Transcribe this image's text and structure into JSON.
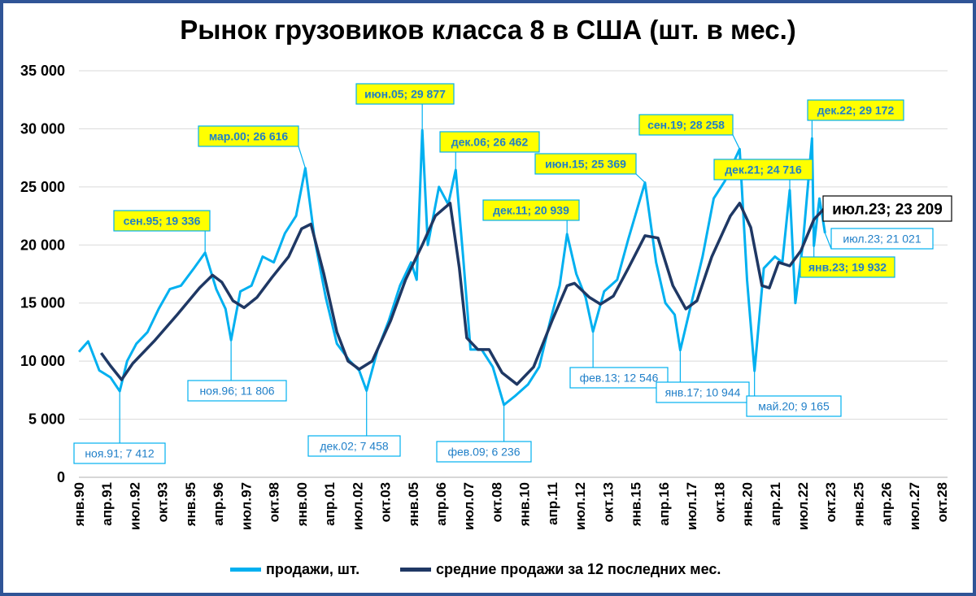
{
  "chart_data": {
    "type": "line",
    "title": "Рынок грузовиков класса 8 в США (шт. в мес.)",
    "ylim": [
      0,
      35000
    ],
    "y_ticks": [
      "0",
      "5 000",
      "10 000",
      "15 000",
      "20 000",
      "25 000",
      "30 000",
      "35 000"
    ],
    "x_ticks": [
      "янв.90",
      "апр.91",
      "июл.92",
      "окт.93",
      "янв.95",
      "апр.96",
      "июл.97",
      "окт.98",
      "янв.00",
      "апр.01",
      "июл.02",
      "окт.03",
      "янв.05",
      "апр.06",
      "июл.07",
      "окт.08",
      "янв.10",
      "апр.11",
      "июл.12",
      "окт.13",
      "янв.15",
      "апр.16",
      "июл.17",
      "окт.18",
      "янв.20",
      "апр.21",
      "июл.22",
      "окт.23",
      "янв.25",
      "апр.26",
      "июл.27",
      "окт.28"
    ],
    "x_range": [
      "янв.90",
      "дек.28"
    ],
    "colors": {
      "sales": "#00b0f0",
      "avg": "#1f3864",
      "frame": "#2f5496",
      "highlight": "#ffff00"
    },
    "series": [
      {
        "name": "продажи, шт.",
        "key": "sales",
        "points": [
          [
            "1990-01",
            10800
          ],
          [
            "1990-06",
            11700
          ],
          [
            "1990-12",
            9200
          ],
          [
            "1991-06",
            8600
          ],
          [
            "1991-11",
            7412
          ],
          [
            "1992-03",
            10000
          ],
          [
            "1992-08",
            11500
          ],
          [
            "1993-02",
            12500
          ],
          [
            "1993-08",
            14500
          ],
          [
            "1994-02",
            16200
          ],
          [
            "1994-08",
            16500
          ],
          [
            "1995-03",
            18000
          ],
          [
            "1995-09",
            19336
          ],
          [
            "1996-03",
            16200
          ],
          [
            "1996-08",
            14500
          ],
          [
            "1996-11",
            11806
          ],
          [
            "1997-04",
            16000
          ],
          [
            "1997-10",
            16500
          ],
          [
            "1998-04",
            19000
          ],
          [
            "1998-10",
            18500
          ],
          [
            "1999-04",
            21000
          ],
          [
            "1999-10",
            22500
          ],
          [
            "2000-03",
            26616
          ],
          [
            "2000-08",
            20500
          ],
          [
            "2001-02",
            15500
          ],
          [
            "2001-08",
            11500
          ],
          [
            "2002-03",
            10000
          ],
          [
            "2002-08",
            9200
          ],
          [
            "2002-12",
            7458
          ],
          [
            "2003-06",
            11000
          ],
          [
            "2003-12",
            13500
          ],
          [
            "2004-06",
            16500
          ],
          [
            "2004-12",
            18500
          ],
          [
            "2005-03",
            17000
          ],
          [
            "2005-06",
            29877
          ],
          [
            "2005-09",
            20000
          ],
          [
            "2006-03",
            25000
          ],
          [
            "2006-08",
            23500
          ],
          [
            "2006-12",
            26462
          ],
          [
            "2007-04",
            19000
          ],
          [
            "2007-08",
            11000
          ],
          [
            "2008-02",
            11000
          ],
          [
            "2008-08",
            9500
          ],
          [
            "2009-02",
            6236
          ],
          [
            "2009-08",
            7000
          ],
          [
            "2010-03",
            8000
          ],
          [
            "2010-09",
            9500
          ],
          [
            "2011-03",
            13500
          ],
          [
            "2011-08",
            16500
          ],
          [
            "2011-12",
            20939
          ],
          [
            "2012-05",
            17500
          ],
          [
            "2012-10",
            15500
          ],
          [
            "2013-02",
            12546
          ],
          [
            "2013-08",
            16000
          ],
          [
            "2014-03",
            17000
          ],
          [
            "2014-09",
            20500
          ],
          [
            "2015-06",
            25369
          ],
          [
            "2015-12",
            18500
          ],
          [
            "2016-05",
            15000
          ],
          [
            "2016-10",
            14000
          ],
          [
            "2017-01",
            10944
          ],
          [
            "2017-07",
            15000
          ],
          [
            "2018-01",
            19000
          ],
          [
            "2018-07",
            24000
          ],
          [
            "2019-01",
            25500
          ],
          [
            "2019-09",
            28258
          ],
          [
            "2020-01",
            17000
          ],
          [
            "2020-05",
            9165
          ],
          [
            "2020-10",
            18000
          ],
          [
            "2021-04",
            19000
          ],
          [
            "2021-08",
            18500
          ],
          [
            "2021-12",
            24716
          ],
          [
            "2022-03",
            15000
          ],
          [
            "2022-07",
            20000
          ],
          [
            "2022-12",
            29172
          ],
          [
            "2023-01",
            19932
          ],
          [
            "2023-04",
            24000
          ],
          [
            "2023-07",
            21021
          ]
        ]
      },
      {
        "name": "средние продажи за 12 последних мес.",
        "key": "avg",
        "points": [
          [
            "1991-01",
            10700
          ],
          [
            "1991-06",
            9600
          ],
          [
            "1991-12",
            8400
          ],
          [
            "1992-06",
            9800
          ],
          [
            "1993-06",
            11800
          ],
          [
            "1994-06",
            14000
          ],
          [
            "1995-06",
            16300
          ],
          [
            "1996-01",
            17400
          ],
          [
            "1996-06",
            16800
          ],
          [
            "1996-12",
            15200
          ],
          [
            "1997-06",
            14600
          ],
          [
            "1998-01",
            15500
          ],
          [
            "1998-09",
            17200
          ],
          [
            "1999-06",
            19000
          ],
          [
            "2000-01",
            21400
          ],
          [
            "2000-06",
            21800
          ],
          [
            "2001-01",
            17500
          ],
          [
            "2001-08",
            12500
          ],
          [
            "2002-02",
            10000
          ],
          [
            "2002-08",
            9300
          ],
          [
            "2003-03",
            10000
          ],
          [
            "2004-01",
            13500
          ],
          [
            "2004-09",
            17000
          ],
          [
            "2005-06",
            20000
          ],
          [
            "2006-01",
            22500
          ],
          [
            "2006-09",
            23600
          ],
          [
            "2007-02",
            18000
          ],
          [
            "2007-06",
            12000
          ],
          [
            "2007-12",
            11000
          ],
          [
            "2008-06",
            11000
          ],
          [
            "2009-01",
            9000
          ],
          [
            "2009-09",
            8000
          ],
          [
            "2010-06",
            9500
          ],
          [
            "2011-04",
            13500
          ],
          [
            "2011-12",
            16500
          ],
          [
            "2012-04",
            16700
          ],
          [
            "2012-12",
            15500
          ],
          [
            "2013-06",
            14900
          ],
          [
            "2014-01",
            15600
          ],
          [
            "2014-09",
            18000
          ],
          [
            "2015-06",
            20800
          ],
          [
            "2016-01",
            20600
          ],
          [
            "2016-09",
            16500
          ],
          [
            "2017-04",
            14500
          ],
          [
            "2017-10",
            15200
          ],
          [
            "2018-06",
            19000
          ],
          [
            "2019-04",
            22500
          ],
          [
            "2019-09",
            23600
          ],
          [
            "2020-03",
            21500
          ],
          [
            "2020-09",
            16500
          ],
          [
            "2021-01",
            16300
          ],
          [
            "2021-06",
            18500
          ],
          [
            "2021-12",
            18200
          ],
          [
            "2022-06",
            19500
          ],
          [
            "2023-01",
            22200
          ],
          [
            "2023-07",
            23209
          ]
        ]
      }
    ],
    "annotations": [
      {
        "id": "a1",
        "label": "сен.95; 19 336",
        "style": "yellow"
      },
      {
        "id": "a2",
        "label": "мар.00; 26 616",
        "style": "yellow"
      },
      {
        "id": "a3",
        "label": "июн.05; 29 877",
        "style": "yellow"
      },
      {
        "id": "a4",
        "label": "дек.06; 26 462",
        "style": "yellow"
      },
      {
        "id": "a5",
        "label": "дек.11; 20 939",
        "style": "yellow"
      },
      {
        "id": "a6",
        "label": "июн.15; 25 369",
        "style": "yellow"
      },
      {
        "id": "a7",
        "label": "сен.19; 28 258",
        "style": "yellow"
      },
      {
        "id": "a8",
        "label": "дек.21; 24 716",
        "style": "yellow"
      },
      {
        "id": "a9",
        "label": "дек.22; 29 172",
        "style": "yellow"
      },
      {
        "id": "a10",
        "label": "янв.23; 19 932",
        "style": "yellow"
      },
      {
        "id": "a11",
        "label": "июл.23; 23 209",
        "style": "black"
      },
      {
        "id": "a12",
        "label": "июл.23; 21 021",
        "style": "white"
      },
      {
        "id": "a13",
        "label": "ноя.91; 7 412",
        "style": "white"
      },
      {
        "id": "a14",
        "label": "ноя.96; 11 806",
        "style": "white"
      },
      {
        "id": "a15",
        "label": "дек.02; 7 458",
        "style": "white"
      },
      {
        "id": "a16",
        "label": "фев.09; 6 236",
        "style": "white"
      },
      {
        "id": "a17",
        "label": "фев.13; 12 546",
        "style": "white"
      },
      {
        "id": "a18",
        "label": "янв.17; 10 944",
        "style": "white"
      },
      {
        "id": "a19",
        "label": "май.20; 9 165",
        "style": "white"
      }
    ]
  }
}
